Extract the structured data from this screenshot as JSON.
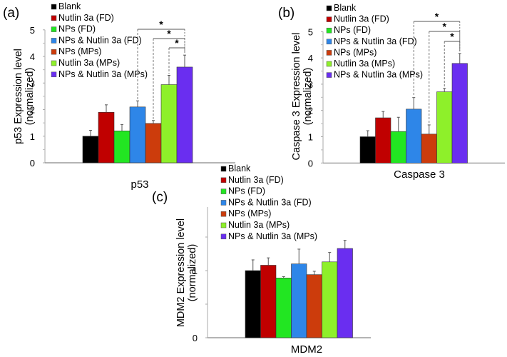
{
  "series_colors": [
    "#000000",
    "#c00000",
    "#22e622",
    "#2e86e8",
    "#cc3c0c",
    "#8ef02a",
    "#6a2ef0"
  ],
  "legend": [
    "Blank",
    "Nutlin 3a (FD)",
    "NPs (FD)",
    "NPs & Nutlin 3a (FD)",
    "NPs (MPs)",
    "Nutlin 3a (MPs)",
    "NPs & Nutlin 3a (MPs)"
  ],
  "chart_data": [
    {
      "panel_label": "(a)",
      "type": "bar",
      "title": "",
      "xlabel": "p53",
      "ylabel": [
        "p53 Expression level",
        "(normalized)"
      ],
      "categories": [
        "p53"
      ],
      "ylim": [
        0,
        5
      ],
      "yticks": [
        0,
        1,
        2,
        3,
        4,
        5
      ],
      "ytick_labels": [
        "0",
        "1",
        "2",
        "3",
        "4",
        "5"
      ],
      "series": [
        {
          "name": "Blank",
          "values": [
            1.0
          ],
          "error_top": [
            1.22
          ]
        },
        {
          "name": "Nutlin 3a (FD)",
          "values": [
            1.9
          ],
          "error_top": [
            2.18
          ]
        },
        {
          "name": "NPs (FD)",
          "values": [
            1.2
          ],
          "error_top": [
            1.44
          ]
        },
        {
          "name": "NPs & Nutlin 3a (FD)",
          "values": [
            2.1
          ],
          "error_top": [
            2.33
          ]
        },
        {
          "name": "NPs (MPs)",
          "values": [
            1.48
          ],
          "error_top": [
            1.59
          ]
        },
        {
          "name": "Nutlin 3a (MPs)",
          "values": [
            2.94
          ],
          "error_top": [
            3.29
          ]
        },
        {
          "name": "NPs & Nutlin 3a (MPs)",
          "values": [
            3.6
          ],
          "error_top": [
            4.05
          ]
        }
      ],
      "significance": [
        {
          "from": "NPs & Nutlin 3a (FD)",
          "to": "NPs & Nutlin 3a (MPs)",
          "label": "*"
        },
        {
          "from": "NPs (MPs)",
          "to": "NPs & Nutlin 3a (MPs)",
          "label": "*"
        },
        {
          "from": "Nutlin 3a (MPs)",
          "to": "NPs & Nutlin 3a (MPs)",
          "label": "*"
        }
      ],
      "legend_position": "top-left",
      "grid": false
    },
    {
      "panel_label": "(b)",
      "type": "bar",
      "title": "",
      "xlabel": "Caspase 3",
      "ylabel": [
        "Caspase 3 Expression level",
        "(normalized)"
      ],
      "categories": [
        "Caspase 3"
      ],
      "ylim": [
        0,
        5
      ],
      "yticks": [
        0,
        1,
        2,
        3,
        4,
        5
      ],
      "ytick_labels": [
        "0",
        "1",
        "2",
        "3",
        "4",
        "5"
      ],
      "series": [
        {
          "name": "Blank",
          "values": [
            1.0
          ],
          "error_top": [
            1.23
          ]
        },
        {
          "name": "Nutlin 3a (FD)",
          "values": [
            1.72
          ],
          "error_top": [
            1.96
          ]
        },
        {
          "name": "NPs (FD)",
          "values": [
            1.2
          ],
          "error_top": [
            1.74
          ]
        },
        {
          "name": "NPs & Nutlin 3a (FD)",
          "values": [
            2.05
          ],
          "error_top": [
            2.49
          ]
        },
        {
          "name": "NPs (MPs)",
          "values": [
            1.1
          ],
          "error_top": [
            1.45
          ]
        },
        {
          "name": "Nutlin 3a (MPs)",
          "values": [
            2.71
          ],
          "error_top": [
            2.84
          ]
        },
        {
          "name": "NPs & Nutlin 3a (MPs)",
          "values": [
            3.79
          ],
          "error_top": [
            4.17
          ]
        }
      ],
      "significance": [
        {
          "from": "NPs & Nutlin 3a (FD)",
          "to": "NPs & Nutlin 3a (MPs)",
          "label": "*"
        },
        {
          "from": "NPs (MPs)",
          "to": "NPs & Nutlin 3a (MPs)",
          "label": "*"
        },
        {
          "from": "Nutlin 3a (MPs)",
          "to": "NPs & Nutlin 3a (MPs)",
          "label": "*"
        }
      ],
      "legend_position": "top-left",
      "grid": false
    },
    {
      "panel_label": "(c)",
      "type": "bar",
      "title": "",
      "xlabel": "MDM2",
      "ylabel": [
        "MDM2 Expression level",
        "(normalized)"
      ],
      "categories": [
        "MDM2"
      ],
      "ylim": [
        0,
        1.95
      ],
      "yticks": [
        0,
        0.5,
        1,
        1.5
      ],
      "ytick_labels": [
        "0",
        "",
        "1",
        ""
      ],
      "series": [
        {
          "name": "Blank",
          "values": [
            1.0
          ],
          "error_top": [
            1.16
          ]
        },
        {
          "name": "Nutlin 3a (FD)",
          "values": [
            1.08
          ],
          "error_top": [
            1.19
          ]
        },
        {
          "name": "NPs (FD)",
          "values": [
            0.89
          ],
          "error_top": [
            0.91
          ]
        },
        {
          "name": "NPs & Nutlin 3a (FD)",
          "values": [
            1.1
          ],
          "error_top": [
            1.32
          ]
        },
        {
          "name": "NPs (MPs)",
          "values": [
            0.94
          ],
          "error_top": [
            0.99
          ]
        },
        {
          "name": "Nutlin 3a (MPs)",
          "values": [
            1.13
          ],
          "error_top": [
            1.27
          ]
        },
        {
          "name": "NPs & Nutlin 3a (MPs)",
          "values": [
            1.33
          ],
          "error_top": [
            1.45
          ]
        }
      ],
      "significance": [],
      "legend_position": "top-left",
      "grid": false
    }
  ]
}
